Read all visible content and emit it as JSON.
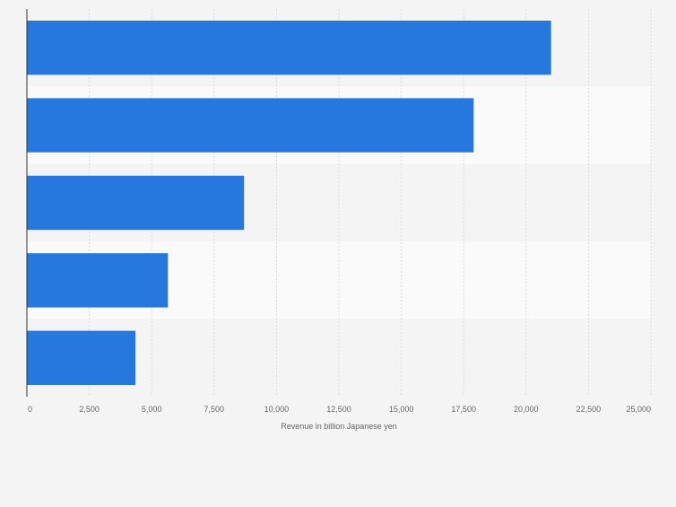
{
  "chart_data": {
    "type": "bar",
    "orientation": "horizontal",
    "title": "",
    "xlabel": "Revenue in billion Japanese yen",
    "ylabel": "",
    "categories": [
      "",
      "",
      "",
      "",
      ""
    ],
    "values": [
      21000,
      17900,
      8700,
      5650,
      4350
    ],
    "xlim": [
      0,
      25000
    ],
    "ticks": [
      0,
      2500,
      5000,
      7500,
      10000,
      12500,
      15000,
      17500,
      20000,
      22500,
      25000
    ],
    "tick_labels": [
      "0",
      "2,500",
      "5,000",
      "7,500",
      "10,000",
      "12,500",
      "15,000",
      "17,500",
      "20,000",
      "22,500",
      "25,000"
    ],
    "grid": true,
    "legend": "none",
    "colors": {
      "bar": "#2677de",
      "background": "#f4f4f4",
      "band_light": "#fafafa",
      "band_dark": "#f4f4f4",
      "grid": "#dcdcdc",
      "axis": "#333333",
      "text": "#666666"
    }
  }
}
